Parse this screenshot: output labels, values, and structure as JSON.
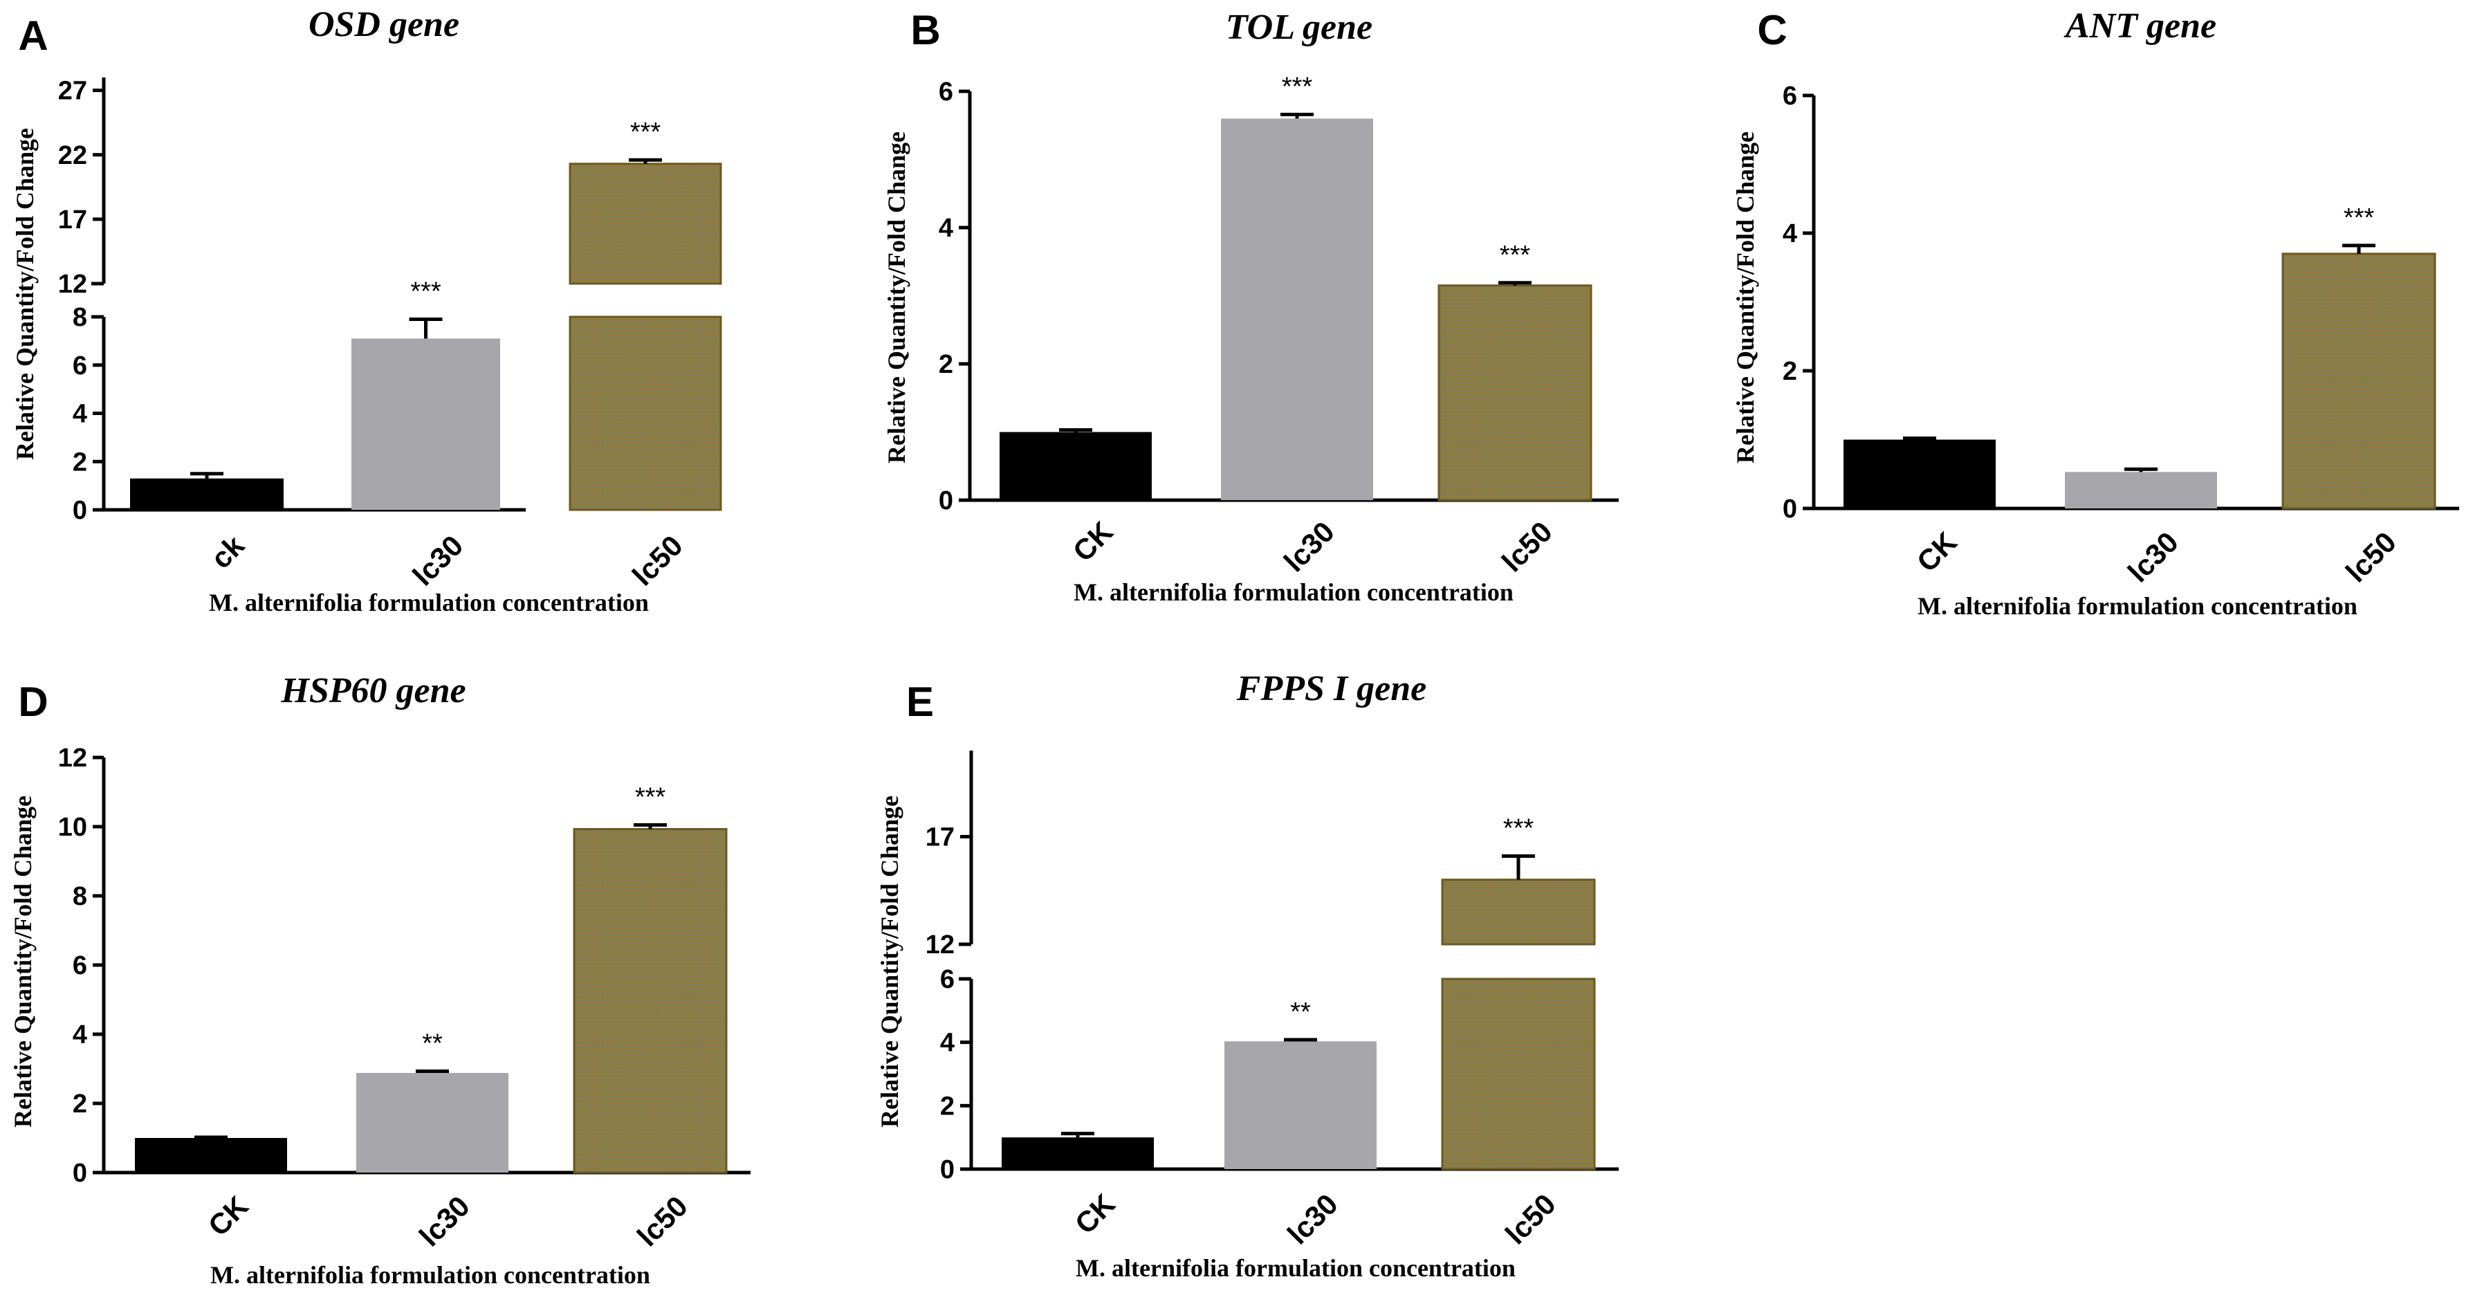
{
  "colors": {
    "ck": "#000000",
    "lc30": "#a6a6ab",
    "lc50_base": "#8f7d3a",
    "lc50_pattern": "#7a7a72",
    "lc50_border": "#6b5a1f"
  },
  "chart_data": [
    {
      "panel": "A",
      "type": "bar",
      "title": "OSD gene",
      "ylabel": "Relative Quantity/Fold Change",
      "xlabel": "M. alternifolia formulation concentration",
      "categories": [
        "ck",
        "lc30",
        "lc50"
      ],
      "values": [
        1.3,
        7.1,
        21.3
      ],
      "errors": [
        0.2,
        0.8,
        0.3
      ],
      "significance": [
        "",
        "***",
        "***"
      ],
      "axis_break": true,
      "lower_ylim": [
        0,
        8
      ],
      "lower_ticks": [
        "0",
        "2",
        "4",
        "6",
        "8"
      ],
      "upper_ylim": [
        12,
        28
      ],
      "upper_ticks": [
        "12",
        "17",
        "22",
        "27"
      ]
    },
    {
      "panel": "B",
      "type": "bar",
      "title": "TOL gene",
      "ylabel": "Relative Quantity/Fold Change",
      "xlabel": "M. alternifolia formulation concentration",
      "categories": [
        "CK",
        "lc30",
        "lc50"
      ],
      "values": [
        1.0,
        5.6,
        3.15
      ],
      "errors": [
        0.03,
        0.06,
        0.04
      ],
      "significance": [
        "",
        "***",
        "***"
      ],
      "axis_break": false,
      "ylim": [
        0,
        6
      ],
      "ticks": [
        "0",
        "2",
        "4",
        "6"
      ]
    },
    {
      "panel": "C",
      "type": "bar",
      "title": "ANT gene",
      "ylabel": "Relative Quantity/Fold Change",
      "xlabel": "M. alternifolia formulation concentration",
      "categories": [
        "CK",
        "lc30",
        "lc50"
      ],
      "values": [
        1.0,
        0.53,
        3.7
      ],
      "errors": [
        0.02,
        0.04,
        0.12
      ],
      "significance": [
        "",
        "",
        "***"
      ],
      "axis_break": false,
      "ylim": [
        0,
        6
      ],
      "ticks": [
        "0",
        "2",
        "4",
        "6"
      ]
    },
    {
      "panel": "D",
      "type": "bar",
      "title": "HSP60 gene",
      "ylabel": "Relative Quantity/Fold Change",
      "xlabel": "M. alternifolia formulation concentration",
      "categories": [
        "CK",
        "lc30",
        "lc50"
      ],
      "values": [
        1.0,
        2.88,
        9.93
      ],
      "errors": [
        0.02,
        0.05,
        0.12
      ],
      "significance": [
        "",
        "**",
        "***"
      ],
      "axis_break": false,
      "ylim": [
        0,
        12
      ],
      "ticks": [
        "0",
        "2",
        "4",
        "6",
        "8",
        "10",
        "12"
      ]
    },
    {
      "panel": "E",
      "type": "bar",
      "title": "FPPS I gene",
      "ylabel": "Relative Quantity/Fold Change",
      "xlabel": "M. alternifolia formulation concentration",
      "categories": [
        "CK",
        "lc30",
        "lc50"
      ],
      "values": [
        1.0,
        4.03,
        15.0
      ],
      "errors": [
        0.12,
        0.05,
        1.1
      ],
      "significance": [
        "",
        "**",
        "***"
      ],
      "axis_break": true,
      "lower_ylim": [
        0,
        6
      ],
      "lower_ticks": [
        "0",
        "2",
        "4",
        "6"
      ],
      "upper_ylim": [
        12,
        21
      ],
      "upper_ticks": [
        "12",
        "17"
      ]
    }
  ]
}
